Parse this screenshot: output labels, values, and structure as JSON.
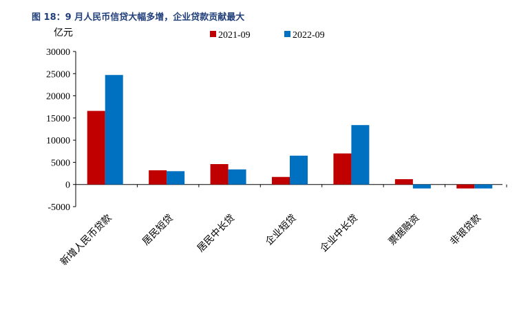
{
  "chart_data": {
    "type": "bar",
    "title": "图 18：9 月人民币信贷大幅多增，企业贷款贡献最大",
    "y_label": "亿元",
    "categories": [
      "新增人民币贷款",
      "居民短贷",
      "居民中长贷",
      "企业短贷",
      "企业中长贷",
      "票据融资",
      "非银贷款"
    ],
    "series": [
      {
        "name": "2021-09",
        "color": "#c00000",
        "values": [
          16600,
          3200,
          4600,
          1700,
          7000,
          1200,
          -900
        ]
      },
      {
        "name": "2022-09",
        "color": "#0070c0",
        "values": [
          24700,
          3000,
          3400,
          6500,
          13400,
          -900,
          -900
        ]
      }
    ],
    "ylim": [
      -5000,
      30000
    ],
    "yticks": [
      -5000,
      0,
      5000,
      10000,
      15000,
      20000,
      25000,
      30000
    ],
    "legend": "top"
  }
}
